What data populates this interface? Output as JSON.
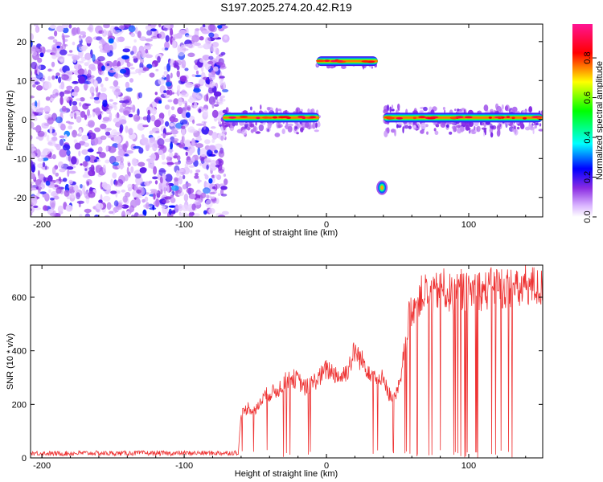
{
  "title": "S197.2025.274.20.42.R19",
  "colors": {
    "noise": "#8a2be2",
    "snr_line": "#ee3333",
    "colormap": [
      "#c8b4ff",
      "#6a0dad",
      "#0000ff",
      "#00ffff",
      "#00ff00",
      "#ffff00",
      "#ff0000",
      "#ff1493"
    ]
  },
  "chart_data": [
    {
      "type": "heatmap",
      "xlabel": "Height of straight line (km)",
      "ylabel": "Frequency (Hz)",
      "xlim": [
        -208,
        152
      ],
      "ylim": [
        -25,
        24.5
      ],
      "xticks": [
        -200,
        -100,
        0,
        100
      ],
      "xtick_labels": [
        "-200",
        "-100",
        "0",
        "100"
      ],
      "yticks": [
        -20,
        -10,
        0,
        10,
        20
      ],
      "ytick_labels": [
        "-20",
        "-10",
        "0",
        "10",
        "20"
      ],
      "noise_region": {
        "x_from": -208,
        "x_to": -73,
        "amplitude": "low (0.0-0.2)"
      },
      "features": [
        {
          "name": "echo near 0 Hz (left)",
          "x_from": -73,
          "x_to": -5,
          "freq": 0.5,
          "max_amplitude": 0.95
        },
        {
          "name": "echo at 15 Hz",
          "x_from": -7,
          "x_to": 36,
          "freq": 15,
          "max_amplitude": 0.95
        },
        {
          "name": "spot at -17 Hz",
          "x_from": 37,
          "x_to": 41,
          "freq": -17.5,
          "max_amplitude": 0.8
        },
        {
          "name": "echo near 0 Hz (right)",
          "x_from": 40,
          "x_to": 152,
          "freq": 0.5,
          "max_amplitude": 0.95
        }
      ],
      "colorbar": {
        "label": "Normalized spectral amplitude",
        "range": [
          0,
          0.97
        ],
        "ticks": [
          0.0,
          0.2,
          0.4,
          0.6,
          0.8
        ],
        "tick_labels": [
          "0.0",
          "0.2",
          "0.4",
          "0.6",
          "0.8"
        ]
      }
    },
    {
      "type": "line",
      "xlabel": "Height of straight line (km)",
      "ylabel": "SNR (10 * v/v)",
      "xlim": [
        -208,
        152
      ],
      "ylim": [
        0,
        720
      ],
      "xticks": [
        -200,
        -100,
        0,
        100
      ],
      "xtick_labels": [
        "-200",
        "-100",
        "0",
        "100"
      ],
      "yticks": [
        0,
        200,
        400,
        600
      ],
      "ytick_labels": [
        "0",
        "200",
        "400",
        "600"
      ],
      "series": [
        {
          "name": "SNR",
          "x": [
            -208,
            -190,
            -170,
            -150,
            -130,
            -110,
            -90,
            -70,
            -62,
            -60,
            -55,
            -50,
            -45,
            -40,
            -35,
            -30,
            -25,
            -20,
            -15,
            -10,
            -5,
            0,
            5,
            10,
            15,
            20,
            25,
            30,
            35,
            38,
            40,
            43,
            45,
            48,
            50,
            53,
            55,
            58,
            60,
            65,
            70,
            75,
            80,
            85,
            90,
            95,
            100,
            105,
            110,
            115,
            120,
            125,
            130,
            135,
            140,
            145,
            152
          ],
          "values": [
            18,
            16,
            18,
            17,
            18,
            17,
            18,
            18,
            20,
            160,
            190,
            170,
            230,
            240,
            250,
            280,
            300,
            290,
            260,
            280,
            300,
            330,
            320,
            300,
            330,
            400,
            360,
            330,
            300,
            270,
            320,
            250,
            230,
            220,
            250,
            300,
            440,
            520,
            560,
            600,
            620,
            600,
            640,
            620,
            600,
            630,
            610,
            640,
            620,
            630,
            650,
            630,
            640,
            620,
            650,
            640,
            630
          ]
        }
      ],
      "dropouts_x_range": [
        -60,
        140
      ]
    }
  ]
}
